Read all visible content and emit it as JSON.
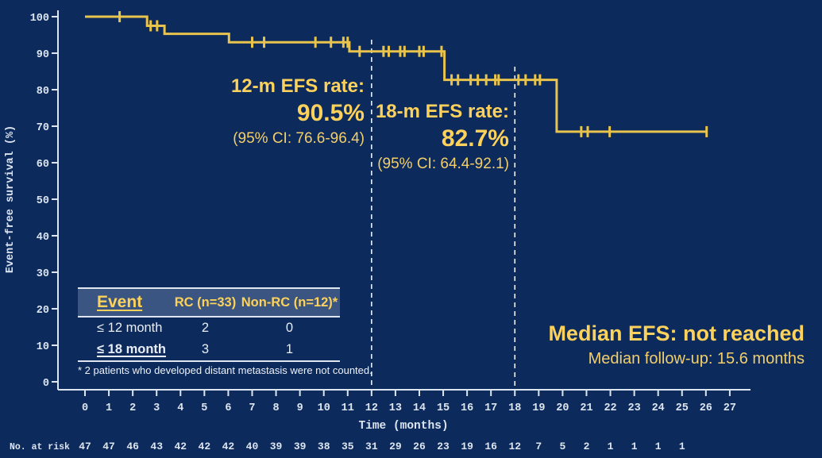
{
  "colors": {
    "background": "#0c2a5c",
    "curve": "#e9c44c",
    "axis": "#dde5f0",
    "heading_yellow": "#fcd25c",
    "ci_yellow": "#f2cf6b",
    "table_header_bg": "#3a5582",
    "dashed_line": "#eef2f8"
  },
  "chart_data": {
    "type": "line",
    "subtype": "kaplan-meier-step-curve",
    "title": "",
    "xlabel": "Time (months)",
    "ylabel": "Event-free survival (%)",
    "xlim": [
      0,
      27.8
    ],
    "ylim": [
      0,
      100
    ],
    "grid": false,
    "x_ticks": [
      0,
      1,
      2,
      3,
      4,
      5,
      6,
      7,
      8,
      9,
      10,
      11,
      12,
      13,
      14,
      15,
      16,
      17,
      18,
      19,
      20,
      21,
      22,
      23,
      24,
      25,
      26,
      27
    ],
    "y_ticks": [
      0,
      10,
      20,
      30,
      40,
      50,
      60,
      70,
      80,
      90,
      100
    ],
    "series": [
      {
        "name": "Event-free survival",
        "color": "#e9c44c",
        "step_points": [
          [
            0,
            100
          ],
          [
            2.6,
            100
          ],
          [
            2.6,
            97.5
          ],
          [
            3.33,
            97.5
          ],
          [
            3.33,
            95.3
          ],
          [
            6.03,
            95.3
          ],
          [
            6.03,
            93.0
          ],
          [
            11.07,
            93.0
          ],
          [
            11.07,
            90.5
          ],
          [
            15.05,
            90.5
          ],
          [
            15.05,
            82.7
          ],
          [
            19.75,
            82.7
          ],
          [
            19.75,
            68.5
          ],
          [
            26.03,
            68.5
          ]
        ],
        "censor_marks": [
          [
            1.45,
            100
          ],
          [
            2.75,
            97.5
          ],
          [
            3.02,
            97.5
          ],
          [
            7.0,
            93.0
          ],
          [
            7.5,
            93.0
          ],
          [
            9.65,
            93.0
          ],
          [
            10.3,
            93.0
          ],
          [
            10.82,
            93.0
          ],
          [
            11.0,
            93.0
          ],
          [
            11.5,
            90.5
          ],
          [
            12.5,
            90.5
          ],
          [
            12.72,
            90.5
          ],
          [
            13.2,
            90.5
          ],
          [
            13.38,
            90.5
          ],
          [
            14.0,
            90.5
          ],
          [
            14.18,
            90.5
          ],
          [
            14.93,
            90.5
          ],
          [
            15.35,
            82.7
          ],
          [
            15.62,
            82.7
          ],
          [
            16.15,
            82.7
          ],
          [
            16.45,
            82.7
          ],
          [
            16.8,
            82.7
          ],
          [
            17.18,
            82.7
          ],
          [
            17.32,
            82.7
          ],
          [
            18.15,
            82.7
          ],
          [
            18.45,
            82.7
          ],
          [
            18.85,
            82.7
          ],
          [
            19.05,
            82.7
          ],
          [
            20.78,
            68.5
          ],
          [
            21.05,
            68.5
          ],
          [
            21.97,
            68.5
          ],
          [
            26.03,
            68.5
          ]
        ]
      }
    ],
    "reference_lines": [
      {
        "x": 12,
        "style": "dashed"
      },
      {
        "x": 18,
        "style": "dashed"
      }
    ],
    "legend": null
  },
  "annotations": {
    "efs12": {
      "title": "12-m EFS rate:",
      "value": "90.5%",
      "ci": "(95% CI: 76.6-96.4)"
    },
    "efs18": {
      "title": "18-m EFS rate:",
      "value": "82.7%",
      "ci": "(95% CI: 64.4-92.1)"
    },
    "median": {
      "line1": "Median EFS: not reached",
      "line2": "Median follow-up: 15.6 months"
    }
  },
  "event_table": {
    "headers": [
      "Event",
      "RC (n=33)",
      "Non-RC (n=12)*"
    ],
    "rows": [
      [
        "≤ 12 month",
        "2",
        "0"
      ],
      [
        "≤ 18 month",
        "3",
        "1"
      ]
    ],
    "footnote": "* 2 patients who developed distant metastasis were not counted."
  },
  "risk_table": {
    "label": "No. at risk",
    "months": [
      0,
      1,
      2,
      3,
      4,
      5,
      6,
      7,
      8,
      9,
      10,
      11,
      12,
      13,
      14,
      15,
      16,
      17,
      18,
      19,
      20,
      21,
      22,
      23,
      24,
      25
    ],
    "values": [
      47,
      47,
      46,
      43,
      42,
      42,
      42,
      40,
      39,
      39,
      38,
      35,
      31,
      29,
      26,
      23,
      19,
      16,
      12,
      7,
      5,
      2,
      1,
      1,
      1,
      1
    ]
  }
}
